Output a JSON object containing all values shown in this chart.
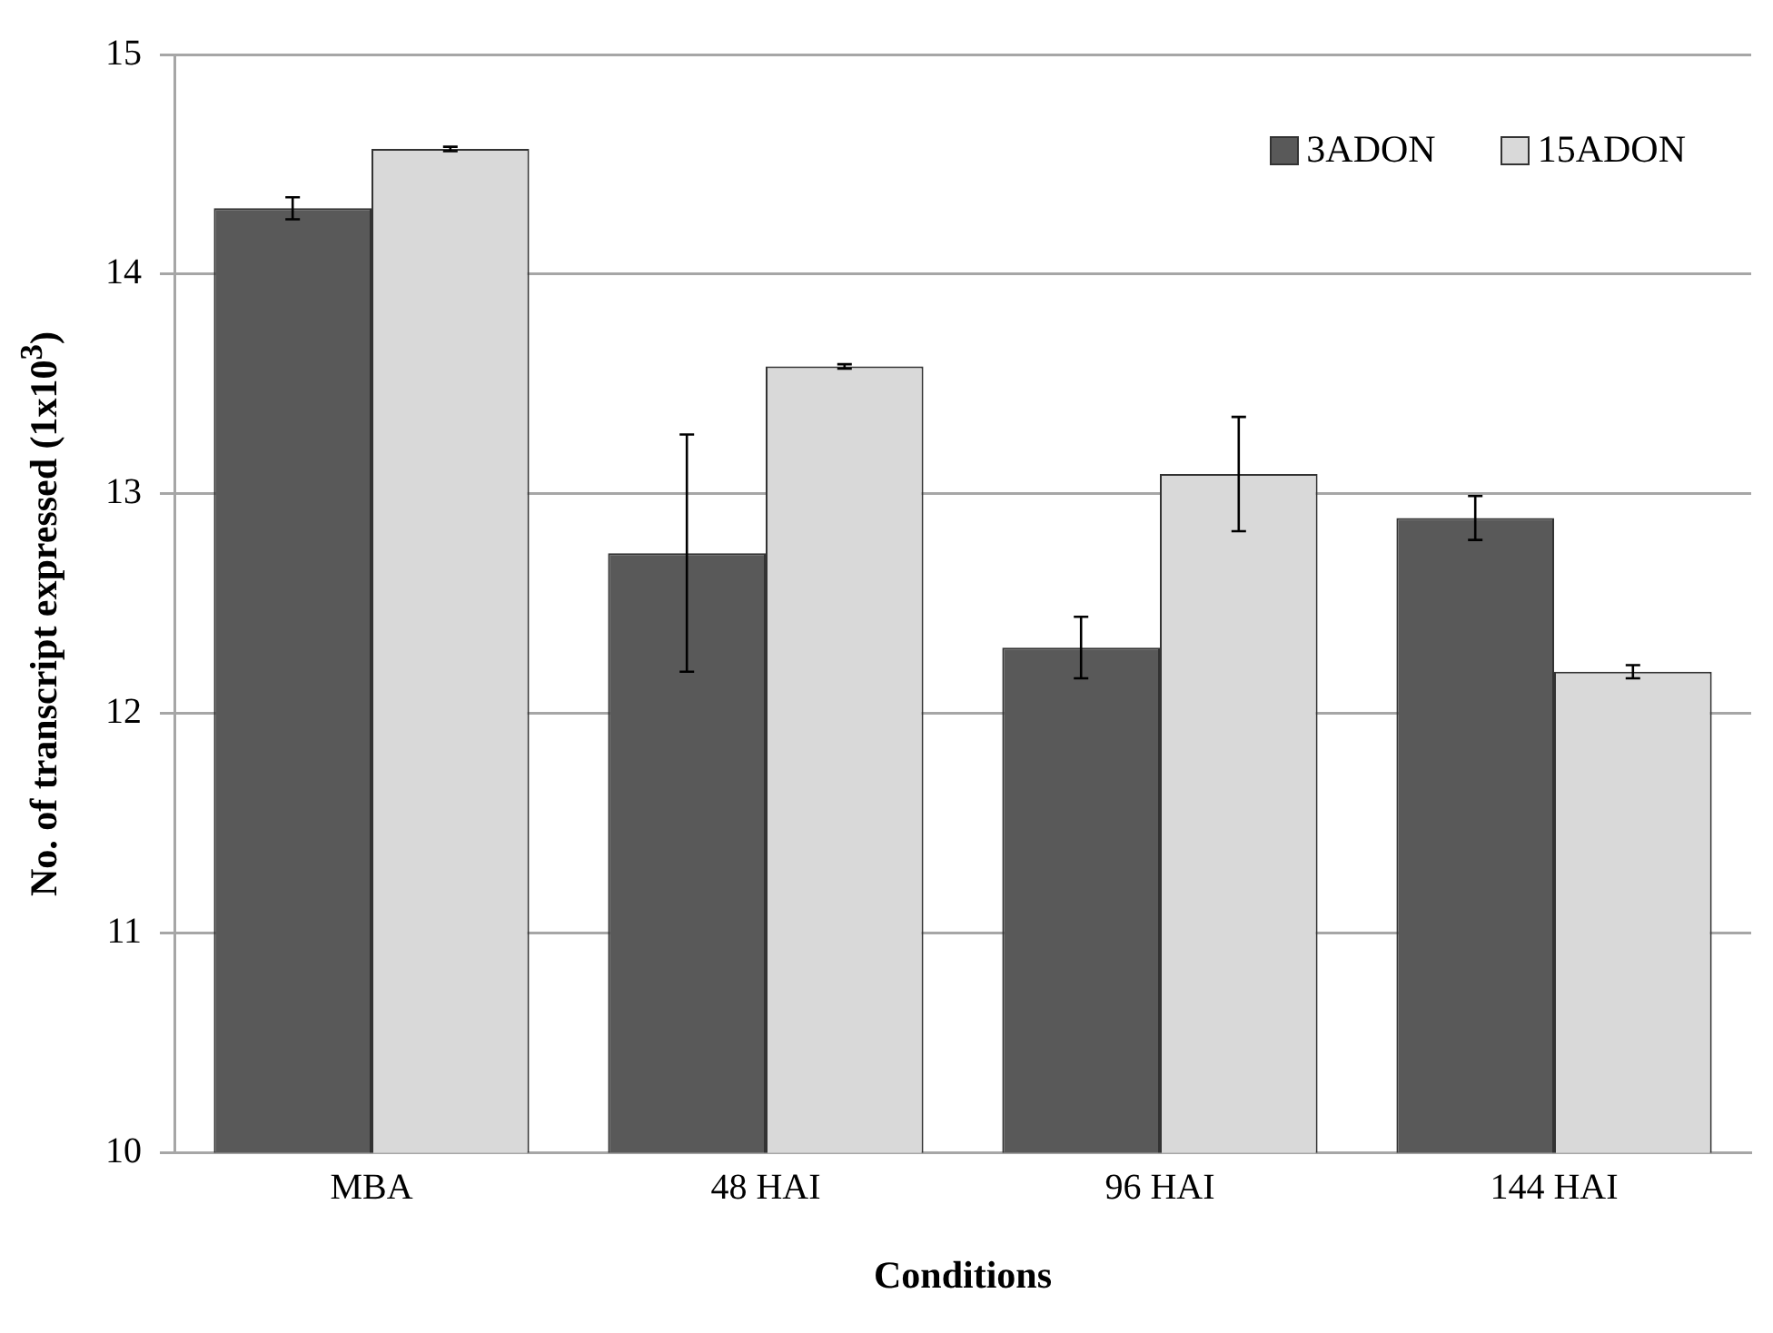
{
  "chart_data": {
    "type": "bar",
    "xlabel": "Conditions",
    "ylabel": "No. of transcript expressed (1x10$^{3}$)",
    "categories": [
      "MBA",
      "48 HAI",
      "96 HAI",
      "144 HAI"
    ],
    "series": [
      {
        "name": "3ADON",
        "color": "#595959",
        "values": [
          14.3,
          12.73,
          12.3,
          12.89
        ],
        "errors": [
          0.05,
          0.54,
          0.14,
          0.1
        ]
      },
      {
        "name": "15ADON",
        "color": "#d9d9d9",
        "values": [
          14.57,
          13.58,
          13.09,
          12.19
        ],
        "errors": [
          0.01,
          0.01,
          0.26,
          0.03
        ]
      }
    ],
    "ylim": [
      10,
      15
    ],
    "yticks": [
      10,
      11,
      12,
      13,
      14,
      15
    ],
    "grid": "y",
    "legend": "top right"
  }
}
